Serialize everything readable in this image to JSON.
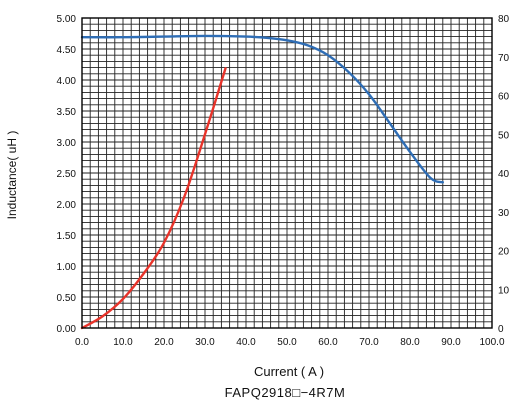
{
  "chart_data": {
    "type": "line",
    "title": "FAPQ2918□−4R7M",
    "xlabel": "Current ( A )",
    "ylabel": "Inductance( uH )",
    "xlim": [
      0,
      100
    ],
    "ylim": [
      0,
      5.0
    ],
    "y2lim": [
      0,
      80
    ],
    "grid": true,
    "x_ticks": [
      "0.0",
      "10.0",
      "20.0",
      "30.0",
      "40.0",
      "50.0",
      "60.0",
      "70.0",
      "80.0",
      "90.0",
      "100.0"
    ],
    "y_ticks": [
      "0.00",
      "0.50",
      "1.00",
      "1.50",
      "2.00",
      "2.50",
      "3.00",
      "3.50",
      "4.00",
      "4.50",
      "5.00"
    ],
    "y2_ticks": [
      "0",
      "10",
      "20",
      "30",
      "40",
      "50",
      "60",
      "70",
      "80"
    ],
    "series": [
      {
        "color": "#2e6db5",
        "axis": "left",
        "x": [
          0,
          10,
          20,
          30,
          40,
          45,
          50,
          55,
          60,
          65,
          70,
          75,
          80,
          85,
          88
        ],
        "y": [
          4.69,
          4.69,
          4.7,
          4.71,
          4.7,
          4.68,
          4.64,
          4.56,
          4.4,
          4.13,
          3.77,
          3.31,
          2.84,
          2.42,
          2.35
        ]
      },
      {
        "color": "#e8332a",
        "axis": "right",
        "x": [
          0,
          5,
          10,
          15,
          20,
          25,
          30,
          35
        ],
        "y": [
          0,
          3,
          7.5,
          14,
          22,
          34,
          50,
          67
        ]
      }
    ]
  }
}
